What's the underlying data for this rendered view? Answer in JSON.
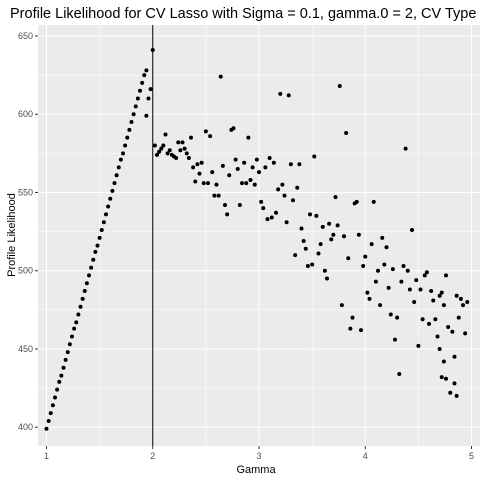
{
  "chart_data": {
    "type": "scatter",
    "title": "Profile Likelihood for CV Lasso with Sigma = 0.1, gamma.0 = 2, CV Type = m",
    "xlabel": "Gamma",
    "ylabel": "Profile Likelihood",
    "xlim": [
      0.92,
      5.08
    ],
    "ylim": [
      388,
      657
    ],
    "x_ticks": [
      1,
      2,
      3,
      4,
      5
    ],
    "x_tick_labels": [
      "1",
      "2",
      "3",
      "4",
      "5"
    ],
    "y_ticks": [
      400,
      450,
      500,
      550,
      600,
      650
    ],
    "y_tick_labels": [
      "400",
      "450",
      "500",
      "550",
      "600",
      "650"
    ],
    "grid": true,
    "vline_x": 2,
    "point_color": "#000000",
    "panel_color": "#ebebeb",
    "grid_color": "#ffffff",
    "points": [
      [
        1.0,
        399
      ],
      [
        1.02,
        404
      ],
      [
        1.04,
        409
      ],
      [
        1.06,
        414
      ],
      [
        1.08,
        419
      ],
      [
        1.1,
        424
      ],
      [
        1.12,
        429
      ],
      [
        1.14,
        433
      ],
      [
        1.16,
        438
      ],
      [
        1.18,
        443
      ],
      [
        1.2,
        448
      ],
      [
        1.22,
        453
      ],
      [
        1.24,
        458
      ],
      [
        1.26,
        463
      ],
      [
        1.28,
        467
      ],
      [
        1.3,
        472
      ],
      [
        1.32,
        477
      ],
      [
        1.34,
        482
      ],
      [
        1.36,
        487
      ],
      [
        1.38,
        492
      ],
      [
        1.4,
        497
      ],
      [
        1.42,
        502
      ],
      [
        1.44,
        507
      ],
      [
        1.46,
        512
      ],
      [
        1.48,
        516
      ],
      [
        1.5,
        521
      ],
      [
        1.52,
        526
      ],
      [
        1.54,
        531
      ],
      [
        1.56,
        536
      ],
      [
        1.58,
        541
      ],
      [
        1.6,
        546
      ],
      [
        1.62,
        551
      ],
      [
        1.64,
        556
      ],
      [
        1.66,
        561
      ],
      [
        1.68,
        566
      ],
      [
        1.7,
        571
      ],
      [
        1.72,
        575
      ],
      [
        1.74,
        580
      ],
      [
        1.76,
        585
      ],
      [
        1.78,
        590
      ],
      [
        1.8,
        595
      ],
      [
        1.82,
        600
      ],
      [
        1.84,
        605
      ],
      [
        1.86,
        610
      ],
      [
        1.88,
        615
      ],
      [
        1.9,
        620
      ],
      [
        1.92,
        625
      ],
      [
        1.94,
        628
      ],
      [
        1.94,
        599
      ],
      [
        1.96,
        610
      ],
      [
        1.98,
        616
      ],
      [
        2.0,
        641
      ],
      [
        2.02,
        580
      ],
      [
        2.04,
        574
      ],
      [
        2.06,
        576
      ],
      [
        2.08,
        578
      ],
      [
        2.1,
        580
      ],
      [
        2.12,
        587
      ],
      [
        2.14,
        575
      ],
      [
        2.16,
        577
      ],
      [
        2.18,
        574
      ],
      [
        2.2,
        573
      ],
      [
        2.22,
        572
      ],
      [
        2.24,
        582
      ],
      [
        2.26,
        577
      ],
      [
        2.28,
        582
      ],
      [
        2.3,
        578
      ],
      [
        2.32,
        575
      ],
      [
        2.34,
        572
      ],
      [
        2.36,
        585
      ],
      [
        2.38,
        566
      ],
      [
        2.4,
        557
      ],
      [
        2.42,
        568
      ],
      [
        2.44,
        562
      ],
      [
        2.46,
        569
      ],
      [
        2.48,
        556
      ],
      [
        2.5,
        589
      ],
      [
        2.52,
        556
      ],
      [
        2.54,
        586
      ],
      [
        2.56,
        563
      ],
      [
        2.58,
        548
      ],
      [
        2.6,
        555
      ],
      [
        2.62,
        548
      ],
      [
        2.64,
        624
      ],
      [
        2.66,
        567
      ],
      [
        2.68,
        542
      ],
      [
        2.7,
        536
      ],
      [
        2.72,
        561
      ],
      [
        2.74,
        590
      ],
      [
        2.76,
        591
      ],
      [
        2.78,
        571
      ],
      [
        2.8,
        565
      ],
      [
        2.82,
        542
      ],
      [
        2.84,
        556
      ],
      [
        2.86,
        569
      ],
      [
        2.88,
        556
      ],
      [
        2.9,
        585
      ],
      [
        2.92,
        558
      ],
      [
        2.94,
        566
      ],
      [
        2.96,
        555
      ],
      [
        2.98,
        571
      ],
      [
        3.0,
        563
      ],
      [
        3.02,
        544
      ],
      [
        3.04,
        540
      ],
      [
        3.06,
        566
      ],
      [
        3.08,
        533
      ],
      [
        3.1,
        572
      ],
      [
        3.12,
        534
      ],
      [
        3.14,
        569
      ],
      [
        3.16,
        537
      ],
      [
        3.18,
        552
      ],
      [
        3.2,
        613
      ],
      [
        3.22,
        555
      ],
      [
        3.24,
        548
      ],
      [
        3.26,
        531
      ],
      [
        3.28,
        612
      ],
      [
        3.3,
        568
      ],
      [
        3.32,
        545
      ],
      [
        3.34,
        510
      ],
      [
        3.36,
        553
      ],
      [
        3.38,
        568
      ],
      [
        3.4,
        527
      ],
      [
        3.42,
        519
      ],
      [
        3.44,
        514
      ],
      [
        3.46,
        503
      ],
      [
        3.48,
        536
      ],
      [
        3.5,
        504
      ],
      [
        3.52,
        573
      ],
      [
        3.54,
        535
      ],
      [
        3.56,
        511
      ],
      [
        3.58,
        517
      ],
      [
        3.6,
        528
      ],
      [
        3.62,
        500
      ],
      [
        3.64,
        495
      ],
      [
        3.66,
        530
      ],
      [
        3.68,
        520
      ],
      [
        3.7,
        523
      ],
      [
        3.72,
        547
      ],
      [
        3.74,
        529
      ],
      [
        3.76,
        618
      ],
      [
        3.78,
        478
      ],
      [
        3.8,
        522
      ],
      [
        3.82,
        588
      ],
      [
        3.84,
        508
      ],
      [
        3.86,
        463
      ],
      [
        3.88,
        470
      ],
      [
        3.9,
        543
      ],
      [
        3.92,
        544
      ],
      [
        3.94,
        523
      ],
      [
        3.96,
        462
      ],
      [
        3.98,
        503
      ],
      [
        4.0,
        509
      ],
      [
        4.02,
        486
      ],
      [
        4.04,
        482
      ],
      [
        4.06,
        517
      ],
      [
        4.08,
        544
      ],
      [
        4.1,
        493
      ],
      [
        4.12,
        500
      ],
      [
        4.14,
        478
      ],
      [
        4.16,
        521
      ],
      [
        4.18,
        504
      ],
      [
        4.2,
        515
      ],
      [
        4.22,
        489
      ],
      [
        4.24,
        472
      ],
      [
        4.26,
        501
      ],
      [
        4.28,
        456
      ],
      [
        4.3,
        470
      ],
      [
        4.32,
        434
      ],
      [
        4.34,
        493
      ],
      [
        4.36,
        503
      ],
      [
        4.38,
        578
      ],
      [
        4.4,
        500
      ],
      [
        4.42,
        488
      ],
      [
        4.44,
        526
      ],
      [
        4.46,
        480
      ],
      [
        4.48,
        494
      ],
      [
        4.5,
        452
      ],
      [
        4.52,
        488
      ],
      [
        4.54,
        469
      ],
      [
        4.56,
        497
      ],
      [
        4.58,
        499
      ],
      [
        4.6,
        466
      ],
      [
        4.62,
        487
      ],
      [
        4.64,
        481
      ],
      [
        4.66,
        469
      ],
      [
        4.68,
        458
      ],
      [
        4.7,
        484
      ],
      [
        4.72,
        486
      ],
      [
        4.74,
        478
      ],
      [
        4.76,
        497
      ],
      [
        4.78,
        464
      ],
      [
        4.8,
        422
      ],
      [
        4.82,
        461
      ],
      [
        4.84,
        445
      ],
      [
        4.86,
        484
      ],
      [
        4.88,
        470
      ],
      [
        4.9,
        482
      ],
      [
        4.92,
        478
      ],
      [
        4.94,
        460
      ],
      [
        4.96,
        480
      ],
      [
        4.72,
        432
      ],
      [
        4.76,
        431
      ],
      [
        4.84,
        428
      ],
      [
        4.86,
        420
      ],
      [
        4.7,
        450
      ],
      [
        4.74,
        442
      ]
    ]
  }
}
